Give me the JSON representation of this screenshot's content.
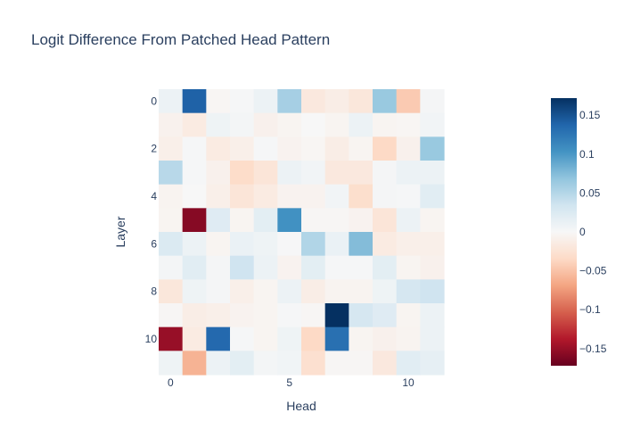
{
  "chart_data": {
    "type": "heatmap",
    "title": "Logit Difference From Patched Head Pattern",
    "xlabel": "Head",
    "ylabel": "Layer",
    "x_tick_labels": [
      "0",
      "5",
      "10"
    ],
    "y_tick_labels": [
      "0",
      "2",
      "4",
      "6",
      "8",
      "10"
    ],
    "colorbar_tick_labels": [
      "0.15",
      "0.1",
      "0.05",
      "0",
      "−0.05",
      "−0.1",
      "−0.15"
    ],
    "colorscale": "RdBu",
    "zmin": -0.172,
    "zmax": 0.172,
    "x": [
      0,
      1,
      2,
      3,
      4,
      5,
      6,
      7,
      8,
      9,
      10,
      11
    ],
    "y": [
      0,
      1,
      2,
      3,
      4,
      5,
      6,
      7,
      8,
      9,
      10,
      11
    ],
    "z": [
      [
        0.01,
        0.14,
        -0.003,
        0.002,
        0.01,
        0.058,
        -0.018,
        -0.012,
        -0.02,
        0.065,
        -0.045,
        0.003
      ],
      [
        -0.007,
        -0.015,
        0.008,
        0.004,
        -0.008,
        -0.004,
        0.0,
        -0.004,
        0.01,
        -0.004,
        -0.003,
        0.005
      ],
      [
        -0.01,
        0.002,
        -0.015,
        -0.01,
        0.002,
        -0.006,
        -0.003,
        -0.012,
        -0.004,
        -0.035,
        -0.008,
        0.065
      ],
      [
        0.048,
        0.002,
        -0.008,
        -0.032,
        -0.022,
        0.01,
        0.005,
        -0.018,
        -0.018,
        0.003,
        0.01,
        0.01
      ],
      [
        -0.005,
        0.0,
        -0.01,
        -0.022,
        -0.015,
        -0.006,
        -0.006,
        0.005,
        -0.03,
        0.003,
        0.002,
        0.02
      ],
      [
        -0.004,
        -0.158,
        0.022,
        -0.004,
        0.018,
        0.105,
        -0.002,
        -0.002,
        -0.006,
        -0.022,
        0.01,
        -0.004
      ],
      [
        0.025,
        0.01,
        -0.004,
        0.012,
        0.008,
        0.001,
        0.052,
        0.012,
        0.075,
        -0.015,
        -0.01,
        -0.01
      ],
      [
        0.004,
        0.02,
        0.003,
        0.035,
        0.01,
        -0.006,
        0.018,
        0.002,
        0.002,
        0.018,
        -0.004,
        -0.008
      ],
      [
        -0.02,
        0.008,
        0.003,
        -0.01,
        -0.004,
        0.01,
        -0.012,
        -0.005,
        -0.005,
        0.008,
        0.03,
        0.035
      ],
      [
        -0.002,
        -0.012,
        -0.01,
        -0.006,
        -0.004,
        0.002,
        -0.002,
        0.172,
        0.03,
        0.022,
        -0.004,
        0.01
      ],
      [
        -0.15,
        -0.015,
        0.135,
        0.002,
        -0.004,
        0.008,
        -0.035,
        0.13,
        -0.004,
        -0.008,
        -0.005,
        0.01
      ],
      [
        0.008,
        -0.06,
        0.01,
        0.018,
        0.004,
        0.006,
        -0.028,
        -0.002,
        -0.002,
        -0.018,
        0.02,
        0.015
      ]
    ]
  }
}
